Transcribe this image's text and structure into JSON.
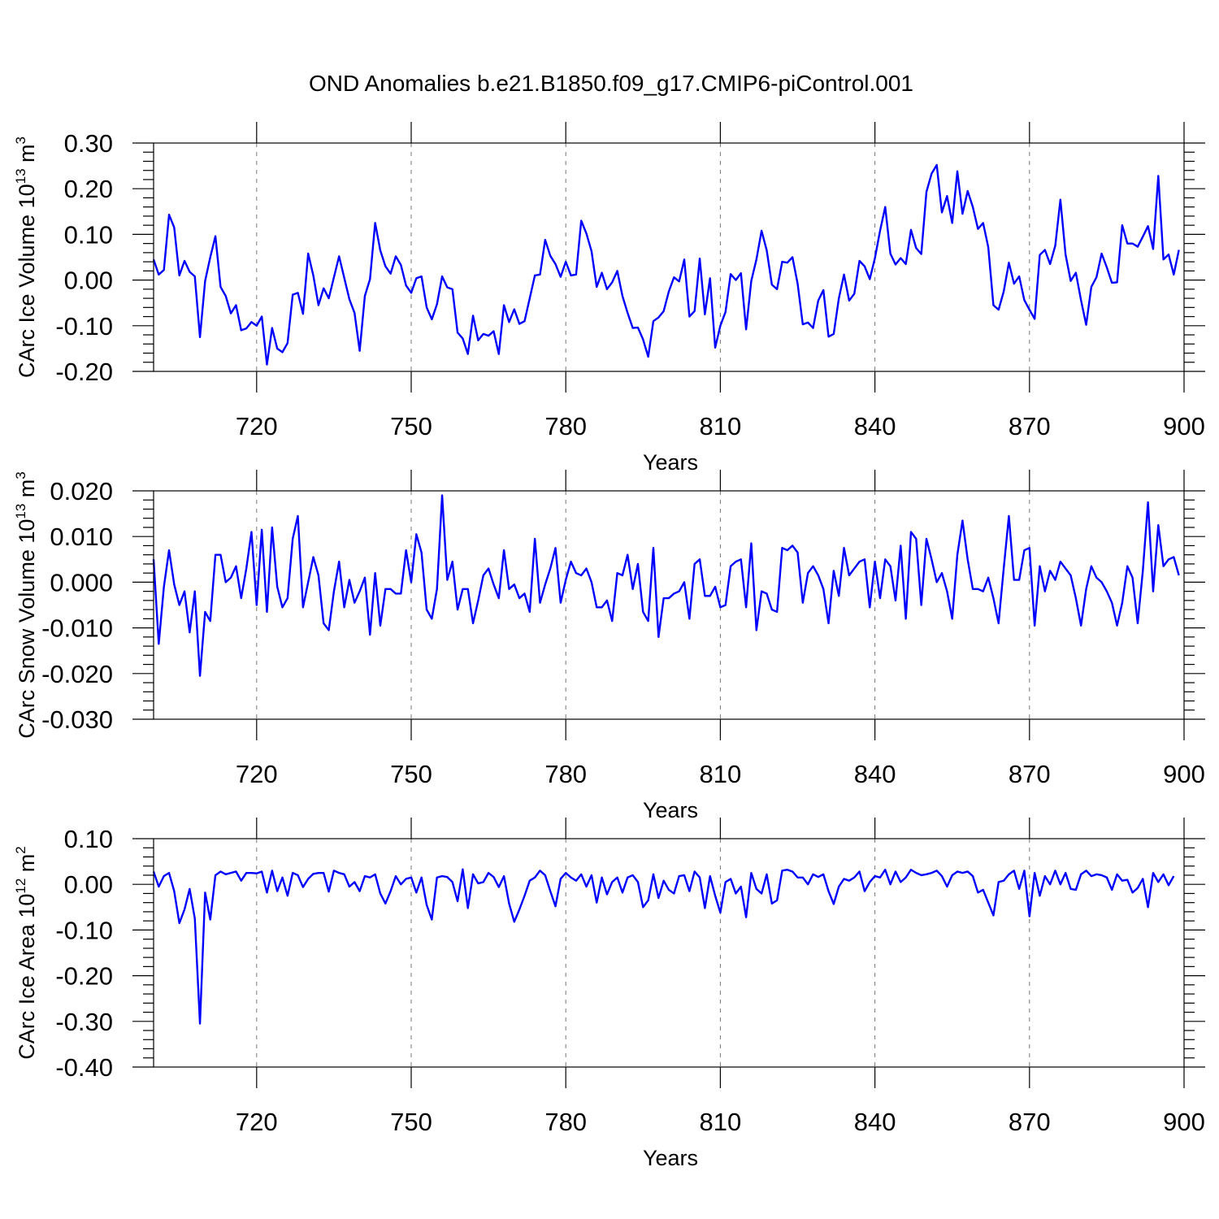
{
  "title": "OND Anomalies b.e21.B1850.f09_g17.CMIP6-piControl.001",
  "colors": {
    "series": "#0000ff",
    "axis": "#000000",
    "grid": "#777777",
    "background": "#ffffff"
  },
  "chart_data": [
    {
      "type": "line",
      "ylabel_main": "CArc Ice Volume 10",
      "ylabel_exp": "13",
      "ylabel_unit": "m",
      "ylabel_unit_exp": "3",
      "xlabel": "Years",
      "xlim": [
        700,
        900
      ],
      "ylim": [
        -0.2,
        0.3
      ],
      "xticks": [
        720,
        750,
        780,
        810,
        840,
        870,
        900
      ],
      "yticks": [
        -0.2,
        -0.1,
        0.0,
        0.1,
        0.2,
        0.3
      ],
      "ytick_labels": [
        "-0.20",
        "-0.10",
        "0.00",
        "0.10",
        "0.20",
        "0.30"
      ],
      "ytick_minor_step": 0.02,
      "x_start": 700,
      "values": [
        0.045,
        0.012,
        0.022,
        0.143,
        0.115,
        0.01,
        0.042,
        0.018,
        0.008,
        -0.125,
        -0.002,
        0.05,
        0.096,
        -0.015,
        -0.035,
        -0.073,
        -0.055,
        -0.11,
        -0.106,
        -0.092,
        -0.1,
        -0.08,
        -0.185,
        -0.105,
        -0.15,
        -0.158,
        -0.138,
        -0.032,
        -0.028,
        -0.074,
        0.058,
        0.01,
        -0.055,
        -0.018,
        -0.04,
        0.006,
        0.052,
        0.005,
        -0.042,
        -0.072,
        -0.155,
        -0.035,
        0.002,
        0.125,
        0.065,
        0.03,
        0.014,
        0.052,
        0.033,
        -0.012,
        -0.028,
        0.004,
        0.008,
        -0.06,
        -0.086,
        -0.053,
        0.008,
        -0.016,
        -0.02,
        -0.115,
        -0.128,
        -0.162,
        -0.078,
        -0.132,
        -0.118,
        -0.122,
        -0.112,
        -0.162,
        -0.055,
        -0.092,
        -0.064,
        -0.096,
        -0.09,
        -0.04,
        0.01,
        0.012,
        0.088,
        0.053,
        0.035,
        0.007,
        0.04,
        0.01,
        0.012,
        0.13,
        0.102,
        0.063,
        -0.015,
        0.016,
        -0.02,
        -0.005,
        0.02,
        -0.035,
        -0.072,
        -0.105,
        -0.104,
        -0.13,
        -0.168,
        -0.09,
        -0.082,
        -0.068,
        -0.025,
        0.006,
        -0.003,
        0.045,
        -0.08,
        -0.068,
        0.047,
        -0.075,
        0.004,
        -0.148,
        -0.1,
        -0.07,
        0.013,
        0.0,
        0.015,
        -0.108,
        -0.002,
        0.045,
        0.108,
        0.065,
        -0.01,
        -0.02,
        0.04,
        0.038,
        0.05,
        -0.008,
        -0.097,
        -0.093,
        -0.105,
        -0.045,
        -0.022,
        -0.124,
        -0.118,
        -0.04,
        0.012,
        -0.045,
        -0.03,
        0.042,
        0.03,
        0.002,
        0.048,
        0.108,
        0.16,
        0.058,
        0.034,
        0.048,
        0.035,
        0.11,
        0.07,
        0.057,
        0.193,
        0.233,
        0.252,
        0.148,
        0.184,
        0.125,
        0.238,
        0.145,
        0.195,
        0.16,
        0.112,
        0.125,
        0.072,
        -0.055,
        -0.065,
        -0.025,
        0.038,
        -0.008,
        0.008,
        -0.044,
        -0.065,
        -0.085,
        0.055,
        0.066,
        0.035,
        0.075,
        0.176,
        0.056,
        -0.002,
        0.016,
        -0.044,
        -0.098,
        -0.015,
        0.006,
        0.058,
        0.028,
        -0.006,
        -0.005,
        0.12,
        0.08,
        0.08,
        0.073,
        0.095,
        0.118,
        0.068,
        0.228,
        0.045,
        0.056,
        0.012,
        0.066
      ]
    },
    {
      "type": "line",
      "ylabel_main": "CArc Snow Volume 10",
      "ylabel_exp": "13",
      "ylabel_unit": "m",
      "ylabel_unit_exp": "3",
      "xlabel": "Years",
      "xlim": [
        700,
        900
      ],
      "ylim": [
        -0.03,
        0.02
      ],
      "xticks": [
        720,
        750,
        780,
        810,
        840,
        870,
        900
      ],
      "yticks": [
        -0.03,
        -0.02,
        -0.01,
        0.0,
        0.01,
        0.02
      ],
      "ytick_labels": [
        "-0.030",
        "-0.020",
        "-0.010",
        "0.000",
        "0.010",
        "0.020"
      ],
      "ytick_minor_step": 0.002,
      "x_start": 700,
      "values": [
        0.005,
        -0.0135,
        -0.001,
        0.007,
        -0.0005,
        -0.005,
        -0.002,
        -0.011,
        -0.002,
        -0.0205,
        -0.0065,
        -0.0085,
        0.006,
        0.006,
        0.0,
        0.001,
        0.0035,
        -0.0035,
        0.003,
        0.011,
        -0.005,
        0.0115,
        -0.0065,
        0.012,
        -0.001,
        -0.0055,
        -0.0035,
        0.0095,
        0.0145,
        -0.0055,
        0.0,
        0.0055,
        0.0015,
        -0.009,
        -0.0105,
        -0.002,
        0.0045,
        -0.0055,
        0.0005,
        -0.0045,
        -0.002,
        0.001,
        -0.0115,
        0.002,
        -0.0095,
        -0.0015,
        -0.0015,
        -0.0025,
        -0.0025,
        0.007,
        0.0,
        0.0105,
        0.0065,
        -0.006,
        -0.008,
        -0.0015,
        0.019,
        0.0005,
        0.0045,
        -0.006,
        -0.0015,
        -0.0015,
        -0.009,
        -0.004,
        0.0015,
        0.003,
        -0.0005,
        -0.0035,
        0.007,
        -0.0015,
        -0.0005,
        -0.0035,
        -0.0025,
        -0.0065,
        0.0095,
        -0.0045,
        -0.0005,
        0.003,
        0.0075,
        -0.0045,
        0.0005,
        0.0045,
        0.002,
        0.0015,
        0.003,
        0.0,
        -0.0055,
        -0.0055,
        -0.004,
        -0.0085,
        0.002,
        0.0015,
        0.006,
        -0.0015,
        0.004,
        -0.0065,
        -0.0085,
        0.0075,
        -0.012,
        -0.0035,
        -0.0035,
        -0.0025,
        -0.002,
        0.0,
        -0.008,
        0.004,
        0.005,
        -0.003,
        -0.003,
        -0.001,
        -0.0055,
        -0.005,
        0.0035,
        0.0045,
        0.005,
        -0.0055,
        0.0085,
        -0.0105,
        -0.002,
        -0.0025,
        -0.006,
        -0.0065,
        0.0075,
        0.007,
        0.008,
        0.0065,
        -0.0045,
        0.002,
        0.0035,
        0.0015,
        -0.0015,
        -0.009,
        0.0025,
        -0.003,
        0.0075,
        0.0015,
        0.003,
        0.0045,
        0.005,
        -0.0055,
        0.0045,
        -0.0035,
        0.005,
        0.0035,
        -0.004,
        0.008,
        -0.008,
        0.011,
        0.0095,
        -0.005,
        0.0095,
        0.005,
        0.0,
        0.002,
        -0.002,
        -0.008,
        0.006,
        0.0135,
        0.005,
        -0.0015,
        -0.0015,
        -0.002,
        0.001,
        -0.0035,
        -0.009,
        0.003,
        0.0145,
        0.0005,
        0.0005,
        0.007,
        0.0075,
        -0.0095,
        0.0035,
        -0.002,
        0.0025,
        0.0005,
        0.0045,
        0.003,
        0.0015,
        -0.0035,
        -0.0095,
        -0.0015,
        0.0035,
        0.001,
        0.0,
        -0.002,
        -0.0045,
        -0.0095,
        -0.0045,
        0.0035,
        0.001,
        -0.009,
        0.0025,
        0.0175,
        -0.002,
        0.0125,
        0.0035,
        0.005,
        0.0055,
        0.0015
      ]
    },
    {
      "type": "line",
      "ylabel_main": "CArc Ice Area 10",
      "ylabel_exp": "12",
      "ylabel_unit": "m",
      "ylabel_unit_exp": "2",
      "xlabel": "Years",
      "xlim": [
        700,
        900
      ],
      "ylim": [
        -0.4,
        0.1
      ],
      "xticks": [
        720,
        750,
        780,
        810,
        840,
        870,
        900
      ],
      "yticks": [
        -0.4,
        -0.3,
        -0.2,
        -0.1,
        0.0,
        0.1
      ],
      "ytick_labels": [
        "-0.40",
        "-0.30",
        "-0.20",
        "-0.10",
        "0.00",
        "0.10"
      ],
      "ytick_minor_step": 0.02,
      "x_start": 700,
      "values": [
        0.028,
        -0.005,
        0.018,
        0.025,
        -0.015,
        -0.085,
        -0.055,
        -0.01,
        -0.075,
        -0.305,
        -0.018,
        -0.077,
        0.02,
        0.028,
        0.022,
        0.025,
        0.028,
        0.008,
        0.025,
        0.025,
        0.024,
        0.028,
        -0.018,
        0.03,
        -0.015,
        0.015,
        -0.025,
        0.025,
        0.02,
        -0.006,
        0.012,
        0.023,
        0.025,
        0.025,
        -0.016,
        0.03,
        0.025,
        0.022,
        -0.005,
        0.005,
        -0.015,
        0.018,
        0.015,
        0.022,
        -0.02,
        -0.042,
        -0.015,
        0.018,
        0.0,
        0.012,
        0.015,
        -0.018,
        0.015,
        -0.045,
        -0.077,
        0.015,
        0.018,
        0.016,
        0.005,
        -0.037,
        0.033,
        -0.052,
        0.022,
        0.002,
        0.005,
        0.025,
        0.016,
        -0.006,
        0.018,
        -0.042,
        -0.082,
        -0.055,
        -0.025,
        0.008,
        0.015,
        0.03,
        0.02,
        -0.015,
        -0.048,
        0.012,
        0.025,
        0.015,
        0.008,
        0.022,
        -0.005,
        0.02,
        -0.04,
        0.015,
        -0.022,
        0.005,
        0.015,
        -0.018,
        0.015,
        0.02,
        0.005,
        -0.05,
        -0.035,
        0.022,
        -0.03,
        0.008,
        -0.012,
        -0.02,
        0.018,
        0.02,
        -0.015,
        0.028,
        0.015,
        -0.052,
        0.018,
        -0.025,
        -0.062,
        0.005,
        0.012,
        -0.02,
        -0.005,
        -0.072,
        0.025,
        -0.01,
        -0.02,
        0.022,
        -0.042,
        -0.035,
        0.03,
        0.032,
        0.028,
        0.015,
        0.015,
        0.0,
        0.022,
        0.016,
        0.022,
        -0.015,
        -0.043,
        -0.005,
        0.012,
        0.008,
        0.015,
        0.028,
        -0.015,
        0.005,
        0.018,
        0.015,
        0.032,
        0.0,
        0.028,
        0.005,
        0.015,
        0.032,
        0.025,
        0.02,
        0.022,
        0.025,
        0.03,
        0.018,
        -0.005,
        0.02,
        0.028,
        0.025,
        0.028,
        0.018,
        -0.018,
        -0.012,
        -0.04,
        -0.068,
        0.005,
        0.008,
        0.022,
        0.03,
        -0.01,
        0.03,
        -0.07,
        0.025,
        -0.025,
        0.018,
        0.0,
        0.03,
        0.0,
        0.025,
        -0.01,
        -0.012,
        0.022,
        0.03,
        0.018,
        0.022,
        0.02,
        0.015,
        -0.012,
        0.022,
        0.008,
        0.01,
        -0.018,
        -0.008,
        0.012,
        -0.05,
        0.025,
        0.005,
        0.022,
        -0.002,
        0.018
      ]
    }
  ]
}
